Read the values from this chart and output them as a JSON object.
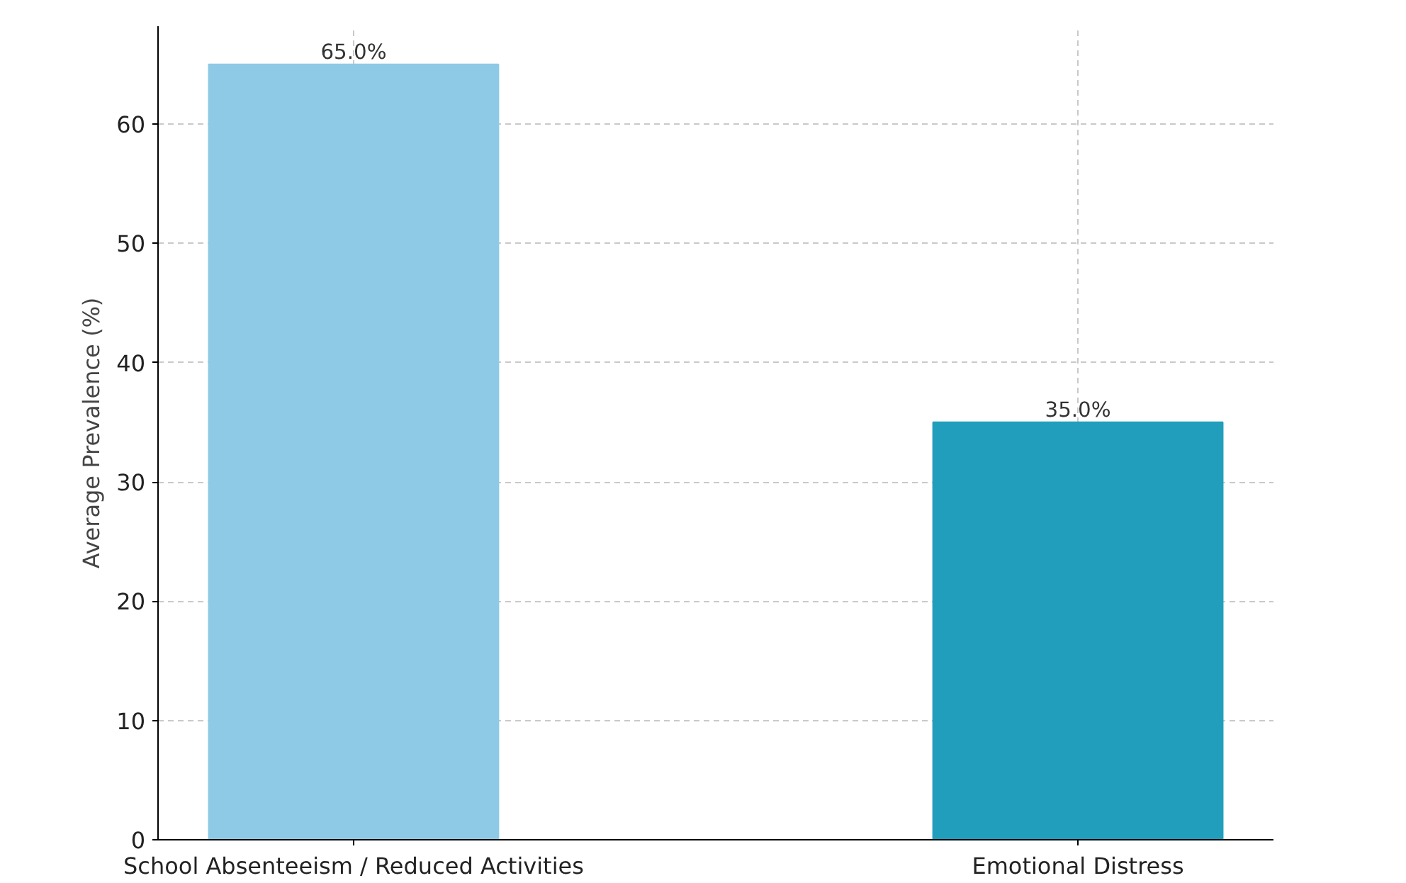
{
  "chart_data": {
    "type": "bar",
    "ylabel": "Average Prevalence (%)",
    "categories": [
      "School Absenteeism / Reduced Activities",
      "Emotional Distress"
    ],
    "values": [
      65.0,
      35.0
    ],
    "colors": [
      "#8ecae6",
      "#219ebc"
    ],
    "value_labels": [
      "65.0%",
      "35.0%"
    ],
    "ylim": [
      0,
      68.2
    ],
    "yticks": [
      0,
      10,
      20,
      30,
      40,
      50,
      60
    ],
    "grid": true
  }
}
